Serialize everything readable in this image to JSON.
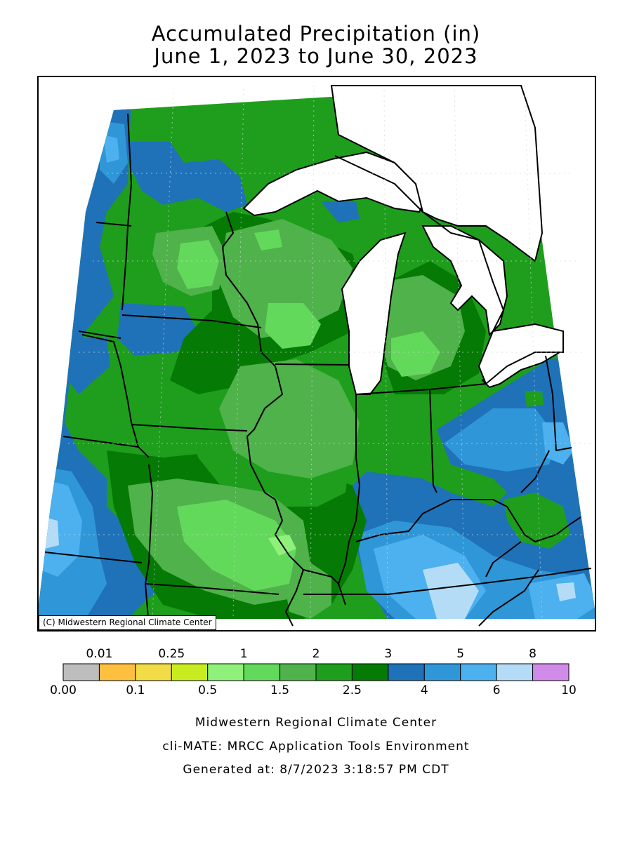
{
  "title": {
    "line1": "Accumulated Precipitation (in)",
    "line2": "June 1, 2023 to June 30, 2023"
  },
  "map": {
    "copyright": "(C) Midwestern Regional Climate Center",
    "colors": {
      "band_0_01": "#ffbf3f",
      "band_0_1": "#f2dc45",
      "band_0_25": "#c8ec1f",
      "band_0_5": "#8ff07a",
      "band_1": "#63d95b",
      "band_1_5": "#4fb24a",
      "band_2": "#1e9e1c",
      "band_2_5": "#057a05",
      "band_3": "#1f72b8",
      "band_4": "#2f97d8",
      "band_5": "#4cb1ee",
      "band_6": "#b5dcf7",
      "lake": "#ffffff",
      "border": "#000000"
    }
  },
  "legend": {
    "top_labels": [
      "0.01",
      "0.25",
      "1",
      "2",
      "3",
      "5",
      "8"
    ],
    "bottom_labels": [
      "0.00",
      "0.1",
      "0.5",
      "1.5",
      "2.5",
      "4",
      "6",
      "10"
    ],
    "colors": [
      "#bdbdbd",
      "#ffbf3f",
      "#f2dc45",
      "#c8ec1f",
      "#8ff07a",
      "#63d95b",
      "#4fb24a",
      "#1e9e1c",
      "#057a05",
      "#1f72b8",
      "#2f97d8",
      "#4cb1ee",
      "#b5dcf7",
      "#d08ae8"
    ]
  },
  "footer": {
    "line1": "Midwestern Regional Climate Center",
    "line2": "cli-MATE: MRCC Application Tools Environment",
    "line3": "Generated at: 8/7/2023 3:18:57 PM CDT"
  }
}
